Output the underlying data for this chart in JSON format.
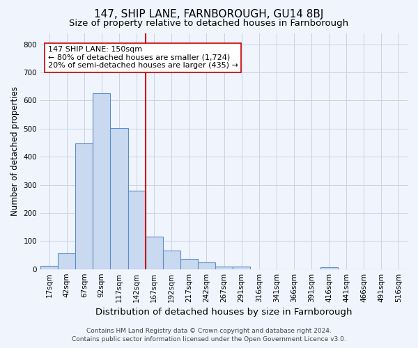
{
  "title": "147, SHIP LANE, FARNBOROUGH, GU14 8BJ",
  "subtitle": "Size of property relative to detached houses in Farnborough",
  "xlabel": "Distribution of detached houses by size in Farnborough",
  "ylabel": "Number of detached properties",
  "categories": [
    "17sqm",
    "42sqm",
    "67sqm",
    "92sqm",
    "117sqm",
    "142sqm",
    "167sqm",
    "192sqm",
    "217sqm",
    "242sqm",
    "267sqm",
    "291sqm",
    "316sqm",
    "341sqm",
    "366sqm",
    "391sqm",
    "416sqm",
    "441sqm",
    "466sqm",
    "491sqm",
    "516sqm"
  ],
  "values": [
    12,
    57,
    448,
    625,
    503,
    280,
    115,
    65,
    37,
    25,
    10,
    8,
    0,
    0,
    0,
    0,
    7,
    0,
    0,
    0,
    0
  ],
  "bar_color": "#c8d9f0",
  "bar_edge_color": "#5b8fc9",
  "vline_x": 5.5,
  "vline_color": "#cc0000",
  "annotation_line1": "147 SHIP LANE: 150sqm",
  "annotation_line2": "← 80% of detached houses are smaller (1,724)",
  "annotation_line3": "20% of semi-detached houses are larger (435) →",
  "annotation_box_color": "#ffffff",
  "annotation_box_edge": "#cc0000",
  "ylim": [
    0,
    840
  ],
  "yticks": [
    0,
    100,
    200,
    300,
    400,
    500,
    600,
    700,
    800
  ],
  "grid_color": "#c8d4e8",
  "background_color": "#f0f4fc",
  "footer_line1": "Contains HM Land Registry data © Crown copyright and database right 2024.",
  "footer_line2": "Contains public sector information licensed under the Open Government Licence v3.0.",
  "title_fontsize": 11,
  "subtitle_fontsize": 9.5,
  "xlabel_fontsize": 9.5,
  "ylabel_fontsize": 8.5,
  "tick_fontsize": 7.5,
  "footer_fontsize": 6.5
}
